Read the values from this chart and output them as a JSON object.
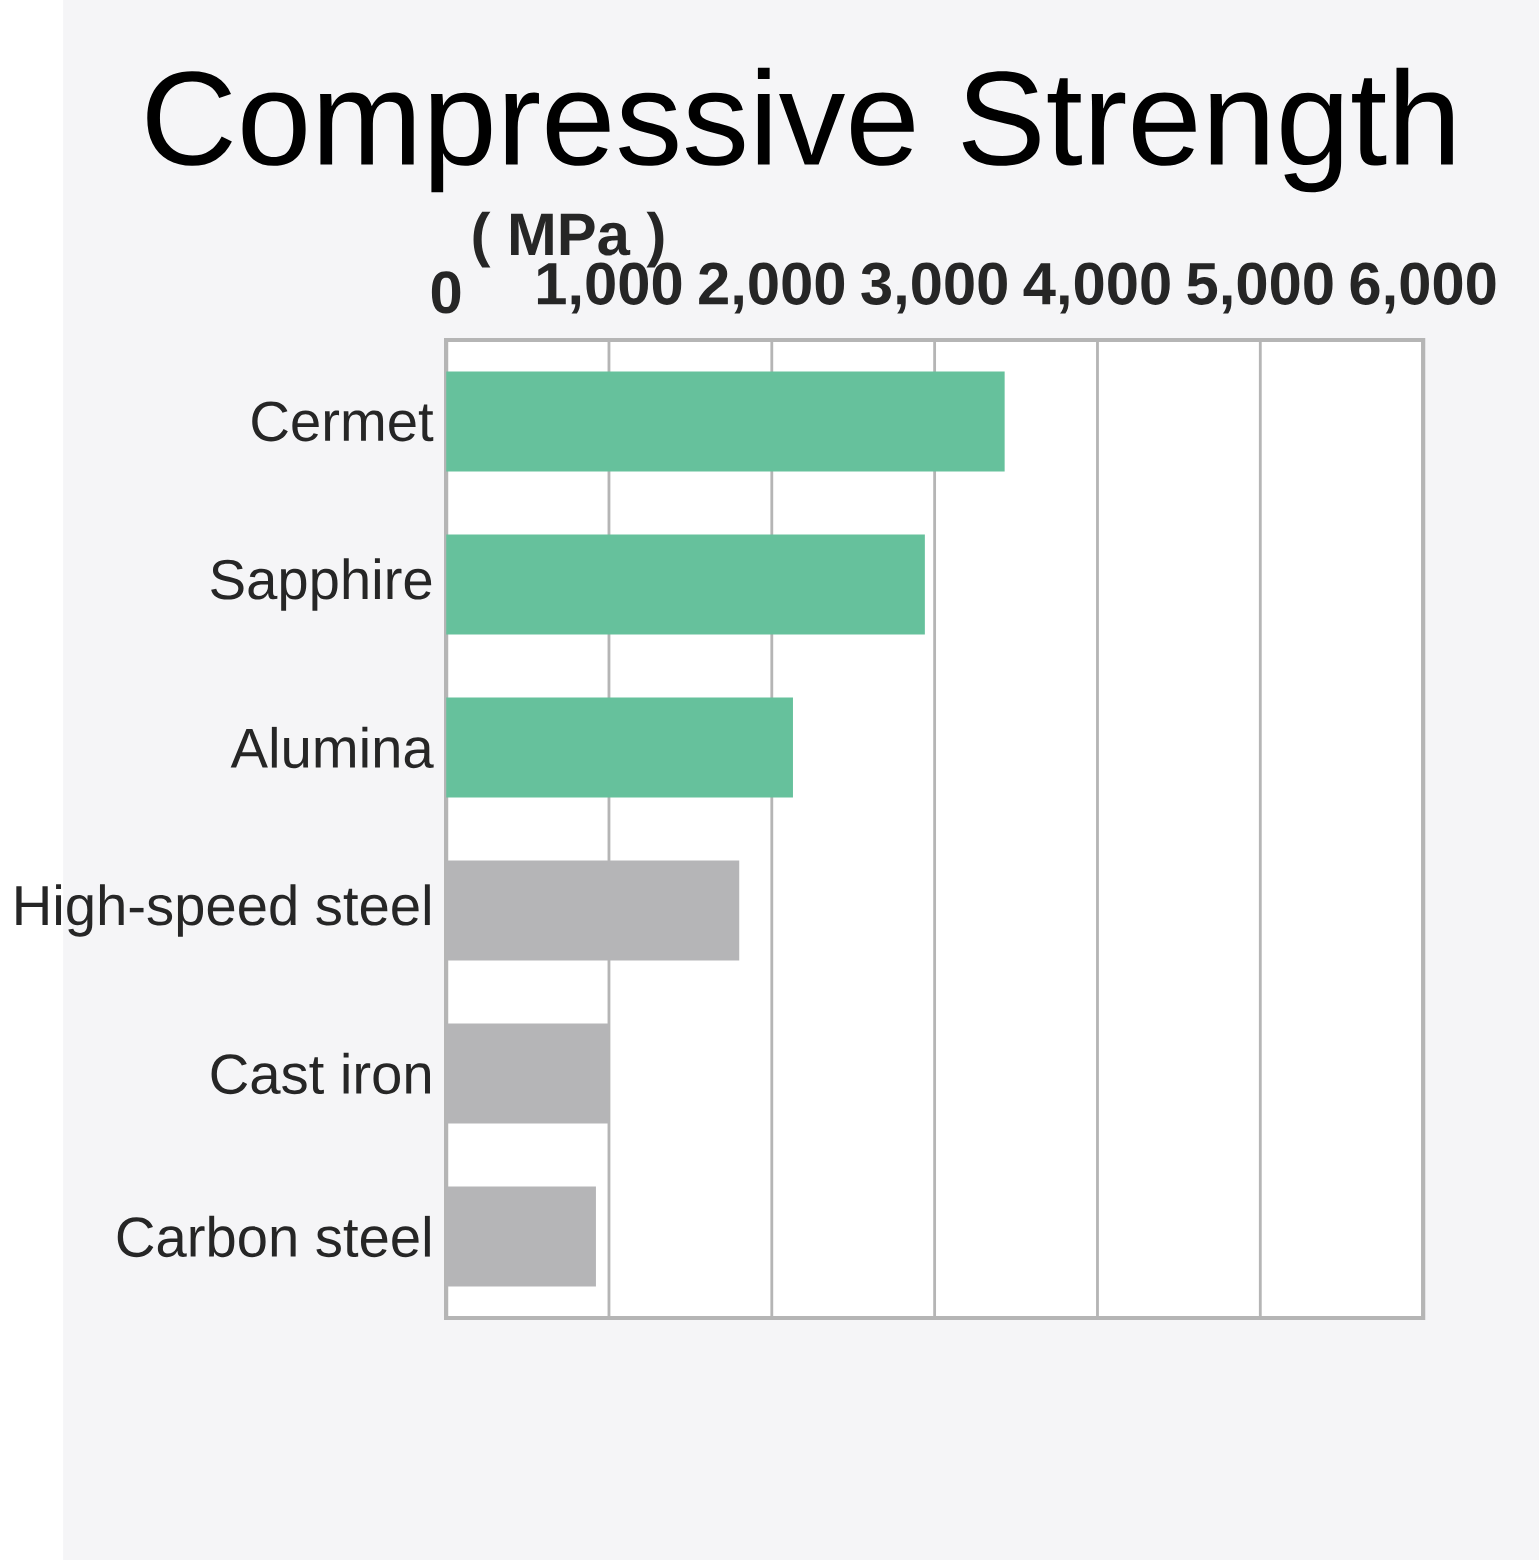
{
  "chart_data": {
    "type": "bar",
    "orientation": "horizontal",
    "title": "Compressive Strength",
    "xlabel": "( MPa )",
    "categories": [
      "Cermet",
      "Sapphire",
      "Alumina",
      "High-speed steel",
      "Cast iron",
      "Carbon steel"
    ],
    "values": [
      3430,
      2940,
      2130,
      1800,
      1000,
      920
    ],
    "colors": [
      "#66c19c",
      "#66c19c",
      "#66c19c",
      "#b5b5b7",
      "#b5b5b7",
      "#b5b5b7"
    ],
    "xlim": [
      0,
      6000
    ],
    "xticks": [
      0,
      {
        "value": 1000,
        "label": "1,000"
      },
      {
        "value": 2000,
        "label": "2,000"
      },
      {
        "value": 3000,
        "label": "3,000"
      },
      {
        "value": 4000,
        "label": "4,000"
      },
      {
        "value": 5000,
        "label": "5,000"
      },
      {
        "value": 6000,
        "label": "6,000"
      }
    ],
    "grid": "x"
  }
}
